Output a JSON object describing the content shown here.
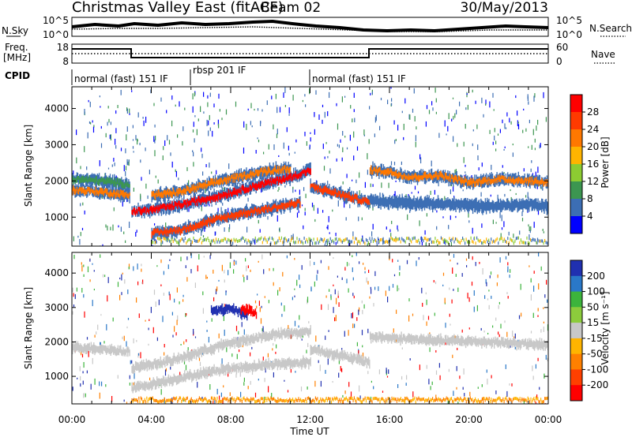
{
  "header": {
    "station": "Christmas Valley East (fitACF)",
    "beam": "Beam 02",
    "date": "30/May/2013"
  },
  "noise_panel": {
    "left_label": "N.Sky",
    "right_label": "N.Search",
    "left_ticks": [
      "10^5",
      "10^0"
    ],
    "right_ticks": [
      "10^5",
      "10^0"
    ]
  },
  "freq_panel": {
    "left_label_1": "Freq.",
    "left_label_2": "[MHz]",
    "right_label": "Nave",
    "left_ticks": [
      "18",
      "8"
    ],
    "right_ticks": [
      "60",
      "0"
    ]
  },
  "cpid": {
    "label": "CPID",
    "segments": [
      {
        "start_h": 0,
        "end_h": 6,
        "name": "normal (fast) 151 IF"
      },
      {
        "start_h": 6,
        "end_h": 12,
        "name": "rbsp 201 IF"
      },
      {
        "start_h": 12,
        "end_h": 24,
        "name": "normal (fast) 151 IF"
      }
    ]
  },
  "power_colorbar": {
    "title": "Power [dB]",
    "ticks": [
      "28",
      "24",
      "20",
      "16",
      "12",
      "8",
      "4"
    ],
    "colors": [
      "#ff0000",
      "#ff3a00",
      "#ff7800",
      "#ffb400",
      "#8ccc32",
      "#3c9650",
      "#3c6eb4",
      "#0000ff"
    ]
  },
  "velocity_colorbar": {
    "title": "Velocity [m s⁻¹]",
    "ticks": [
      "200",
      "100",
      "50",
      "15",
      "-15",
      "-50",
      "-100",
      "-200"
    ],
    "colors": [
      "#2030b0",
      "#2a78c8",
      "#3cb43c",
      "#8ccc3c",
      "#c8c8c8",
      "#ffb400",
      "#ff8000",
      "#ff4000",
      "#ff0000"
    ]
  },
  "chart_data": {
    "type": "heatmap",
    "xlabel": "Time UT",
    "ylabel": "Slant Range [km]",
    "x_ticks": [
      "00:00",
      "04:00",
      "08:00",
      "12:00",
      "16:00",
      "20:00",
      "00:00"
    ],
    "x_range_h": [
      0,
      24
    ],
    "y_range_km": [
      200,
      4600
    ],
    "y_ticks": [
      1000,
      2000,
      3000,
      4000
    ],
    "freq_mhz": [
      {
        "start_h": 0,
        "end_h": 3,
        "value": 16
      },
      {
        "start_h": 3,
        "end_h": 15,
        "value": 10
      },
      {
        "start_h": 15,
        "end_h": 24,
        "value": 16
      }
    ],
    "power_bands": [
      {
        "x": [
          0,
          1.5,
          2.9
        ],
        "y": [
          1750,
          1700,
          1600
        ],
        "color": "#ff7800"
      },
      {
        "x": [
          0,
          1.5,
          2.9
        ],
        "y": [
          2050,
          2000,
          1900
        ],
        "color": "#3c9650"
      },
      {
        "x": [
          3,
          4,
          5.5,
          7.5,
          9.5,
          11,
          12
        ],
        "y": [
          1150,
          1200,
          1350,
          1600,
          1900,
          2100,
          2300
        ],
        "color": "#ff0000"
      },
      {
        "x": [
          4,
          5.5,
          7.5,
          9.5,
          11
        ],
        "y": [
          1600,
          1700,
          2000,
          2250,
          2350
        ],
        "color": "#ff7800"
      },
      {
        "x": [
          4,
          5.5,
          7,
          8.5,
          10,
          11.5
        ],
        "y": [
          550,
          650,
          900,
          1100,
          1250,
          1400
        ],
        "color": "#ff3a00"
      },
      {
        "x": [
          12,
          13,
          14,
          15
        ],
        "y": [
          1850,
          1700,
          1550,
          1400
        ],
        "color": "#ff3a00"
      },
      {
        "x": [
          15,
          16,
          17,
          18.5,
          20,
          21.5,
          23,
          24
        ],
        "y": [
          2300,
          2250,
          2100,
          2150,
          1950,
          2050,
          2000,
          1950
        ],
        "color": "#ff7800"
      },
      {
        "x": [
          15,
          17,
          19,
          21,
          23,
          24
        ],
        "y": [
          1450,
          1400,
          1350,
          1300,
          1350,
          1300
        ],
        "color": "#3c6eb4"
      }
    ],
    "velocity_bands": [
      {
        "x": [
          0,
          1.5,
          2.9
        ],
        "y": [
          1850,
          1800,
          1700
        ],
        "color": "#c8c8c8"
      },
      {
        "x": [
          3,
          5,
          7.5,
          10,
          12
        ],
        "y": [
          1250,
          1450,
          1900,
          2200,
          2300
        ],
        "color": "#c8c8c8"
      },
      {
        "x": [
          3,
          5,
          7.5,
          10,
          12
        ],
        "y": [
          650,
          900,
          1200,
          1350,
          1400
        ],
        "color": "#c8c8c8"
      },
      {
        "x": [
          12,
          13.5,
          15
        ],
        "y": [
          1800,
          1600,
          1400
        ],
        "color": "#c8c8c8"
      },
      {
        "x": [
          15,
          18,
          21,
          24
        ],
        "y": [
          2150,
          2050,
          2000,
          1900
        ],
        "color": "#c8c8c8"
      },
      {
        "x": [
          7,
          8,
          8.8
        ],
        "y": [
          2900,
          2950,
          2800
        ],
        "color": "#2030b0"
      },
      {
        "x": [
          8.5,
          9,
          9.3
        ],
        "y": [
          2950,
          2900,
          2800
        ],
        "color": "#ff0000"
      }
    ]
  }
}
